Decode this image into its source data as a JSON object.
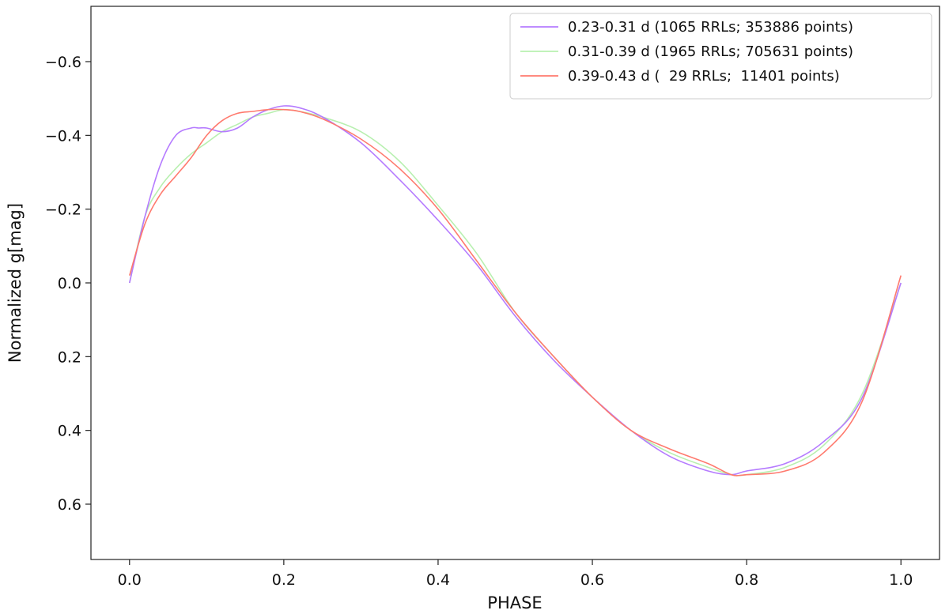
{
  "chart_data": {
    "type": "line",
    "title": "",
    "xlabel": "PHASE",
    "ylabel": "Normalized g[mag]",
    "xlim": [
      -0.05,
      1.05
    ],
    "ylim": [
      0.75,
      -0.75
    ],
    "y_inverted": true,
    "grid": false,
    "legend_position": "top-right",
    "xticks": [
      0.0,
      0.2,
      0.4,
      0.6,
      0.8,
      1.0
    ],
    "xtick_labels": [
      "0.0",
      "0.2",
      "0.4",
      "0.6",
      "0.8",
      "1.0"
    ],
    "yticks": [
      -0.6,
      -0.4,
      -0.2,
      0.0,
      0.2,
      0.4,
      0.6
    ],
    "ytick_labels": [
      "−0.6",
      "−0.4",
      "−0.2",
      "0.0",
      "0.2",
      "0.4",
      "0.6"
    ],
    "series": [
      {
        "name": "0.23-0.31 d (1065 RRLs; 353886 points)",
        "color": "#b57bff",
        "x": [
          0.0,
          0.02,
          0.04,
          0.06,
          0.08,
          0.09,
          0.1,
          0.12,
          0.14,
          0.16,
          0.18,
          0.2,
          0.22,
          0.25,
          0.3,
          0.35,
          0.4,
          0.45,
          0.5,
          0.55,
          0.6,
          0.65,
          0.7,
          0.75,
          0.78,
          0.8,
          0.85,
          0.9,
          0.95,
          1.0
        ],
        "y": [
          0.0,
          -0.18,
          -0.32,
          -0.4,
          -0.42,
          -0.42,
          -0.42,
          -0.41,
          -0.42,
          -0.45,
          -0.47,
          -0.48,
          -0.475,
          -0.45,
          -0.38,
          -0.28,
          -0.17,
          -0.05,
          0.09,
          0.21,
          0.31,
          0.4,
          0.47,
          0.51,
          0.52,
          0.51,
          0.49,
          0.43,
          0.31,
          0.0
        ]
      },
      {
        "name": "0.31-0.39 d (1965 RRLs; 705631 points)",
        "color": "#b8f0b0",
        "x": [
          0.0,
          0.02,
          0.04,
          0.06,
          0.08,
          0.1,
          0.12,
          0.14,
          0.16,
          0.18,
          0.2,
          0.22,
          0.25,
          0.3,
          0.35,
          0.4,
          0.45,
          0.5,
          0.55,
          0.6,
          0.65,
          0.7,
          0.75,
          0.78,
          0.8,
          0.85,
          0.9,
          0.95,
          1.0
        ],
        "y": [
          0.0,
          -0.18,
          -0.26,
          -0.31,
          -0.35,
          -0.38,
          -0.41,
          -0.43,
          -0.45,
          -0.46,
          -0.47,
          -0.465,
          -0.45,
          -0.41,
          -0.33,
          -0.21,
          -0.08,
          0.08,
          0.2,
          0.31,
          0.4,
          0.46,
          0.5,
          0.52,
          0.52,
          0.5,
          0.44,
          0.3,
          0.0
        ]
      },
      {
        "name": "0.39-0.43 d (  29 RRLs;  11401 points)",
        "color": "#ff7a6e",
        "x": [
          0.0,
          0.02,
          0.04,
          0.06,
          0.08,
          0.1,
          0.12,
          0.14,
          0.16,
          0.18,
          0.2,
          0.22,
          0.25,
          0.3,
          0.35,
          0.4,
          0.45,
          0.5,
          0.55,
          0.6,
          0.65,
          0.7,
          0.75,
          0.78,
          0.8,
          0.85,
          0.9,
          0.95,
          1.0
        ],
        "y": [
          -0.02,
          -0.16,
          -0.24,
          -0.29,
          -0.34,
          -0.4,
          -0.44,
          -0.46,
          -0.465,
          -0.47,
          -0.47,
          -0.465,
          -0.445,
          -0.39,
          -0.31,
          -0.2,
          -0.06,
          0.08,
          0.2,
          0.31,
          0.4,
          0.45,
          0.49,
          0.52,
          0.52,
          0.51,
          0.46,
          0.32,
          -0.02
        ]
      }
    ]
  }
}
